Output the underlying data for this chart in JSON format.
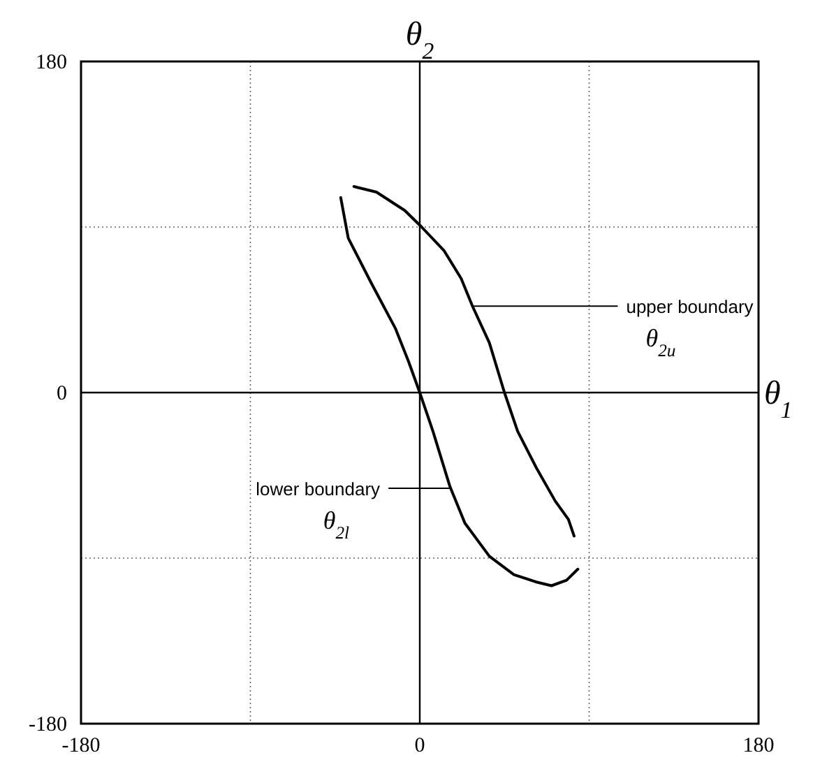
{
  "chart_data": {
    "type": "line",
    "xlabel": "θ$_{1}$",
    "ylabel": "θ$_{2}$",
    "xlim": [
      -180,
      180
    ],
    "ylim": [
      -180,
      180
    ],
    "xticks": [
      -180,
      {
        "value": -90,
        "label": null
      },
      0,
      {
        "value": 90,
        "label": null
      },
      180
    ],
    "yticks": [
      -180,
      {
        "value": -90,
        "label": null
      },
      0,
      {
        "value": 90,
        "label": null
      },
      180
    ],
    "grid": true,
    "marker": "none",
    "line_style": "solid",
    "series": [
      {
        "color": "#000000",
        "x": [
          -35,
          -23,
          -8,
          1,
          13,
          22,
          28,
          37,
          45,
          52,
          62,
          72,
          79,
          82
        ],
        "values": [
          112,
          109,
          99,
          90,
          77,
          62,
          47,
          27,
          0,
          -21,
          -41,
          -59,
          -69,
          -78
        ]
      },
      {
        "color": "#000000",
        "x": [
          -42,
          -38,
          -26,
          -13,
          -6,
          0,
          7,
          16,
          24,
          37,
          50,
          62,
          70,
          78,
          84
        ],
        "values": [
          106,
          84,
          60,
          35,
          17,
          0,
          -21,
          -51,
          -71,
          -89,
          -99,
          -103,
          -105,
          -102,
          -96
        ]
      }
    ],
    "annotations": [
      {
        "text": "upper boundary\nθ$_{2u}$",
        "x": 28,
        "y": 47
      },
      {
        "text": "lower boundary\nθ$_{2l}$",
        "x": 16,
        "y": -52
      }
    ]
  }
}
